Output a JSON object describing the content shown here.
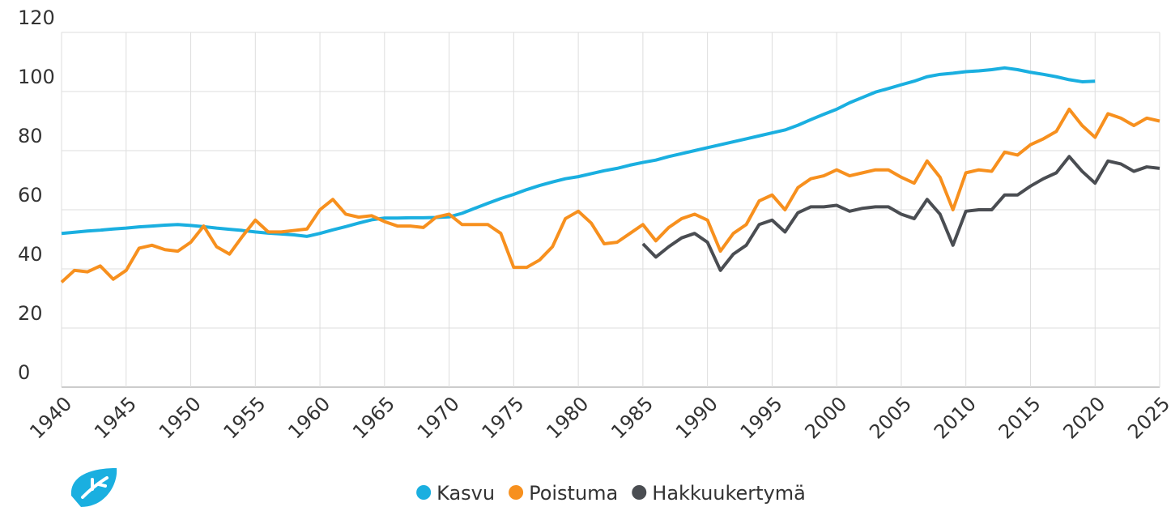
{
  "chart_data": {
    "type": "line",
    "x": [
      1940,
      1941,
      1942,
      1943,
      1944,
      1945,
      1946,
      1947,
      1948,
      1949,
      1950,
      1951,
      1952,
      1953,
      1954,
      1955,
      1956,
      1957,
      1958,
      1959,
      1960,
      1961,
      1962,
      1963,
      1964,
      1965,
      1966,
      1967,
      1968,
      1969,
      1970,
      1971,
      1972,
      1973,
      1974,
      1975,
      1976,
      1977,
      1978,
      1979,
      1980,
      1981,
      1982,
      1983,
      1984,
      1985,
      1986,
      1987,
      1988,
      1989,
      1990,
      1991,
      1992,
      1993,
      1994,
      1995,
      1996,
      1997,
      1998,
      1999,
      2000,
      2001,
      2002,
      2003,
      2004,
      2005,
      2006,
      2007,
      2008,
      2009,
      2010,
      2011,
      2012,
      2013,
      2014,
      2015,
      2016,
      2017,
      2018,
      2019,
      2020,
      2021,
      2022,
      2023,
      2024,
      2025
    ],
    "series": [
      {
        "name": "Kasvu",
        "color": "#1aafe0",
        "values": [
          52.0,
          52.4,
          52.8,
          53.1,
          53.5,
          53.8,
          54.2,
          54.5,
          54.8,
          55.0,
          54.7,
          54.3,
          53.8,
          53.4,
          53.0,
          52.5,
          52.1,
          51.8,
          51.5,
          51.0,
          52.0,
          53.2,
          54.3,
          55.5,
          56.6,
          57.2,
          57.2,
          57.3,
          57.3,
          57.4,
          57.6,
          58.8,
          60.5,
          62.2,
          63.8,
          65.2,
          66.8,
          68.2,
          69.4,
          70.5,
          71.2,
          72.2,
          73.2,
          74.0,
          75.1,
          76.0,
          76.8,
          78.0,
          79.0,
          80.0,
          81.0,
          82.0,
          83.0,
          84.0,
          85.0,
          86.0,
          87.0,
          88.6,
          90.5,
          92.3,
          94.0,
          96.2,
          98.0,
          99.8,
          101.0,
          102.3,
          103.5,
          105.0,
          105.8,
          106.2,
          106.7,
          107.0,
          107.4,
          108.0,
          107.4,
          106.5,
          105.8,
          105.0,
          104.0,
          103.3,
          103.5,
          null,
          null,
          null,
          null,
          null
        ]
      },
      {
        "name": "Poistuma",
        "color": "#f7901e",
        "values": [
          35.5,
          39.5,
          39,
          41,
          36.5,
          39.5,
          47,
          48,
          46.5,
          46,
          49,
          54.5,
          47.5,
          45,
          51,
          56.5,
          52.5,
          52.5,
          53,
          53.5,
          60,
          63.5,
          58.5,
          57.5,
          58,
          56,
          54.5,
          54.5,
          54,
          57.5,
          58.5,
          55,
          55,
          55,
          52,
          40.5,
          40.5,
          43,
          47.5,
          57,
          59.5,
          55.5,
          48.5,
          49,
          52,
          55,
          49.5,
          54,
          57,
          58.5,
          56.5,
          46,
          52,
          55,
          63,
          65,
          60,
          67.5,
          70.5,
          71.5,
          73.5,
          71.5,
          72.5,
          73.5,
          73.5,
          71,
          69,
          76.5,
          71,
          60,
          72.5,
          73.5,
          73,
          79.5,
          78.5,
          82,
          84,
          86.5,
          94,
          88.5,
          84.5,
          92.5,
          91,
          88.5,
          91,
          90
        ]
      },
      {
        "name": "Hakkuukertymä",
        "color": "#4a4d52",
        "values": [
          null,
          null,
          null,
          null,
          null,
          null,
          null,
          null,
          null,
          null,
          null,
          null,
          null,
          null,
          null,
          null,
          null,
          null,
          null,
          null,
          null,
          null,
          null,
          null,
          null,
          null,
          null,
          null,
          null,
          null,
          null,
          null,
          null,
          null,
          null,
          null,
          null,
          null,
          null,
          null,
          null,
          null,
          null,
          null,
          null,
          48.5,
          44,
          47.5,
          50.5,
          52,
          49,
          39.5,
          45,
          48,
          55,
          56.5,
          52.5,
          59,
          61,
          61,
          61.5,
          59.5,
          60.5,
          61,
          61,
          58.5,
          57,
          63.5,
          58.5,
          48,
          59.5,
          60,
          60,
          65,
          65,
          68,
          70.5,
          72.5,
          78,
          73,
          69,
          76.5,
          75.5,
          73,
          74.5,
          74
        ]
      }
    ],
    "xlim": [
      1940,
      2025
    ],
    "xticks": [
      1940,
      1945,
      1950,
      1955,
      1960,
      1965,
      1970,
      1975,
      1980,
      1985,
      1990,
      1995,
      2000,
      2005,
      2010,
      2015,
      2020,
      2025
    ],
    "ylim": [
      0,
      120
    ],
    "yticks": [
      0,
      20,
      40,
      60,
      80,
      100,
      120
    ],
    "grid": true,
    "legend": "bottom"
  }
}
